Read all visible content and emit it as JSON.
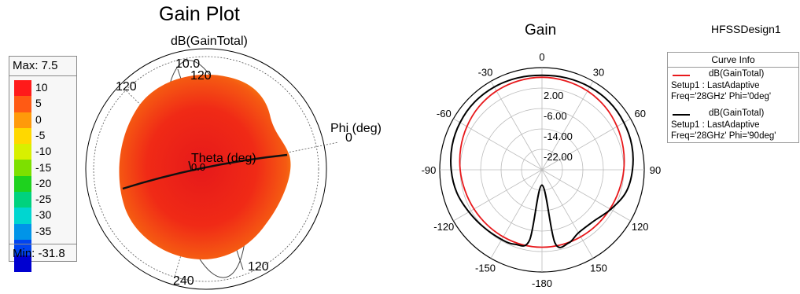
{
  "left_plot": {
    "title": "Gain Plot",
    "subtitle": "dB(GainTotal)",
    "legend": {
      "max_label": "Max: 7.5",
      "min_label": "Min: -31.8",
      "ticks": [
        "10",
        "5",
        "0",
        "-5",
        "-10",
        "-15",
        "-20",
        "-25",
        "-30",
        "-35"
      ],
      "swatch_colors": [
        "#ff1a1a",
        "#ff5a14",
        "#ff9a0a",
        "#ffd800",
        "#d8f000",
        "#7de000",
        "#1ed21e",
        "#00d27e",
        "#00d6d0",
        "#0094e8",
        "#0044f0",
        "#0000d0"
      ]
    },
    "axis_labels": {
      "top_ring": "10.0",
      "top_tick": "120",
      "left_tick": "120",
      "right_tick": "0",
      "bottom_tick": "240",
      "bottom_right_tick": "120",
      "phi": "Phi (deg)",
      "theta": "Theta (deg)",
      "center": "0.0"
    }
  },
  "right_plot": {
    "title": "Gain",
    "design_name": "HFSSDesign1",
    "curve_info": {
      "header": "Curve Info",
      "entries": [
        {
          "name": "dB(GainTotal)",
          "line2": "Setup1 : LastAdaptive",
          "line3": "Freq='28GHz' Phi='0deg'",
          "color": "#e8191c"
        },
        {
          "name": "dB(GainTotal)",
          "line2": "Setup1 : LastAdaptive",
          "line3": "Freq='28GHz' Phi='90deg'",
          "color": "#000000"
        }
      ]
    }
  },
  "chart_data": [
    {
      "type": "heatmap",
      "title": "Gain Plot",
      "quantity": "dB(GainTotal)",
      "colorbar_range": [
        -35,
        10
      ],
      "max": 7.5,
      "min": -31.8
    },
    {
      "type": "line",
      "subtype": "polar",
      "title": "Gain",
      "radial_ticks": [
        "2.00",
        "-6.00",
        "-14.00",
        "-22.00"
      ],
      "radial_tick_values": [
        2,
        -6,
        -14,
        -22
      ],
      "radial_range": [
        -30,
        10
      ],
      "angle_ticks": [
        "0",
        "30",
        "60",
        "90",
        "120",
        "150",
        "-180",
        "-150",
        "-120",
        "-90",
        "-60",
        "-30"
      ],
      "angle_tick_values": [
        0,
        30,
        60,
        90,
        120,
        150,
        180,
        -150,
        -120,
        -90,
        -60,
        -30
      ],
      "series": [
        {
          "name": "dB(GainTotal) Setup1 : LastAdaptive Freq='28GHz' Phi='0deg'",
          "color": "#e8191c",
          "theta": [
            0,
            15,
            30,
            45,
            60,
            75,
            90,
            105,
            120,
            135,
            150,
            165,
            180,
            -165,
            -150,
            -135,
            -120,
            -105,
            -90,
            -75,
            -60,
            -45,
            -30,
            -15
          ],
          "gain_db": [
            6.2,
            6.0,
            5.6,
            4.9,
            3.9,
            2.9,
            2.0,
            1.2,
            0.7,
            0.4,
            0.3,
            0.3,
            0.3,
            0.3,
            0.3,
            0.4,
            0.7,
            1.2,
            2.0,
            2.9,
            3.9,
            4.9,
            5.6,
            6.0
          ]
        },
        {
          "name": "dB(GainTotal) Setup1 : LastAdaptive Freq='28GHz' Phi='90deg'",
          "color": "#000000",
          "theta": [
            0,
            15,
            30,
            45,
            60,
            75,
            90,
            105,
            120,
            135,
            150,
            160,
            170,
            180,
            -170,
            -160,
            -150,
            -135,
            -120,
            -105,
            -90,
            -75,
            -60,
            -45,
            -30,
            -15
          ],
          "gain_db": [
            7.0,
            7.2,
            7.4,
            7.4,
            7.0,
            6.4,
            5.4,
            4.0,
            1.0,
            -1.5,
            -1.5,
            0.5,
            -1.0,
            -24.0,
            -2.0,
            1.0,
            1.5,
            2.0,
            3.0,
            4.5,
            5.5,
            6.4,
            7.0,
            7.4,
            7.4,
            7.2
          ]
        }
      ]
    }
  ]
}
